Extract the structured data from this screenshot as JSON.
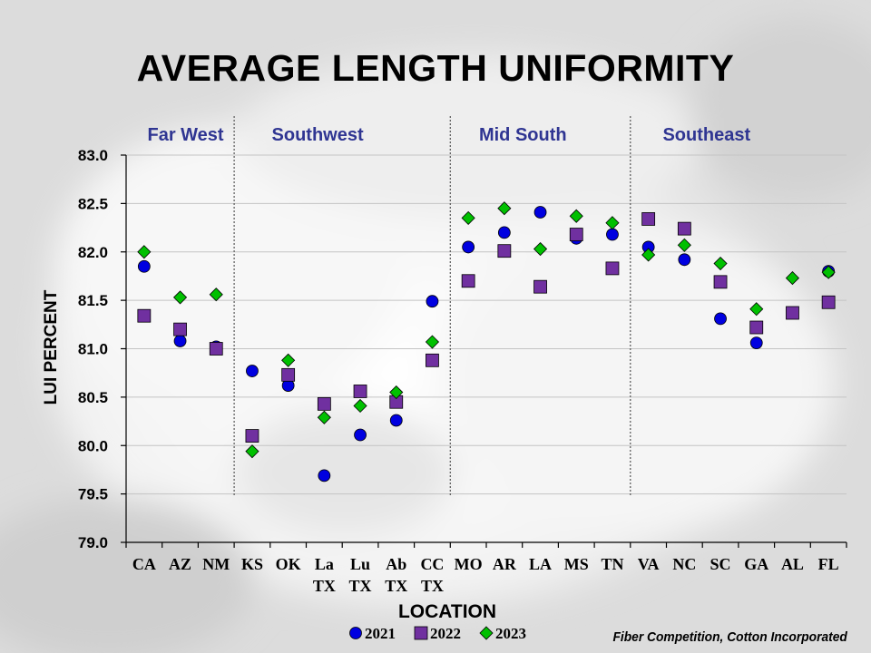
{
  "chart_data": {
    "type": "scatter",
    "title": "AVERAGE LENGTH UNIFORMITY",
    "xlabel": "LOCATION",
    "ylabel": "LUI PERCENT",
    "ylim": [
      79.0,
      83.0
    ],
    "yticks": [
      "79.0",
      "79.5",
      "80.0",
      "80.5",
      "81.0",
      "81.5",
      "82.0",
      "82.5",
      "83.0"
    ],
    "grid": true,
    "legend_position": "bottom",
    "categories": [
      [
        "CA"
      ],
      [
        "AZ"
      ],
      [
        "NM"
      ],
      [
        "KS"
      ],
      [
        "OK"
      ],
      [
        "La",
        "TX"
      ],
      [
        "Lu",
        "TX"
      ],
      [
        "Ab",
        "TX"
      ],
      [
        "CC",
        "TX"
      ],
      [
        "MO"
      ],
      [
        "AR"
      ],
      [
        "LA"
      ],
      [
        "MS"
      ],
      [
        "TN"
      ],
      [
        "VA"
      ],
      [
        "NC"
      ],
      [
        "SC"
      ],
      [
        "GA"
      ],
      [
        "AL"
      ],
      [
        "FL"
      ]
    ],
    "regions": [
      {
        "name": "Far West",
        "start": 0,
        "end": 2
      },
      {
        "name": "Southwest",
        "start": 3,
        "end": 8
      },
      {
        "name": "Mid South",
        "start": 9,
        "end": 13
      },
      {
        "name": "Southeast",
        "start": 14,
        "end": 19
      }
    ],
    "series": [
      {
        "name": "2021",
        "marker": "circle",
        "color": "#0000e0",
        "values": [
          81.85,
          81.08,
          81.02,
          80.77,
          80.62,
          79.69,
          80.11,
          80.26,
          81.49,
          82.05,
          82.2,
          82.41,
          82.14,
          82.18,
          82.05,
          81.92,
          81.31,
          81.06,
          null,
          81.8
        ]
      },
      {
        "name": "2022",
        "marker": "square",
        "color": "#7030a0",
        "values": [
          81.34,
          81.2,
          81.0,
          80.1,
          80.73,
          80.43,
          80.56,
          80.45,
          80.88,
          81.7,
          82.01,
          81.64,
          82.18,
          81.83,
          82.34,
          82.24,
          81.69,
          81.22,
          81.37,
          81.48
        ]
      },
      {
        "name": "2023",
        "marker": "diamond",
        "color": "#00c000",
        "values": [
          82.0,
          81.53,
          81.56,
          79.94,
          80.88,
          80.29,
          80.41,
          80.55,
          81.07,
          82.35,
          82.45,
          82.03,
          82.37,
          82.3,
          81.97,
          82.07,
          81.88,
          81.41,
          81.73,
          81.79
        ]
      }
    ]
  },
  "source_credit": "Fiber Competition, Cotton Incorporated"
}
